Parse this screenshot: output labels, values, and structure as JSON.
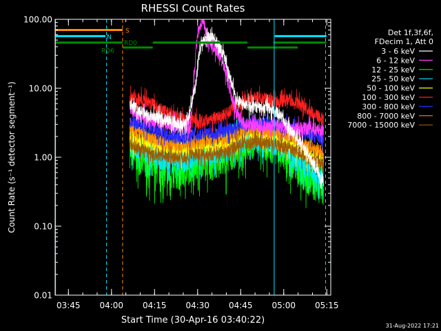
{
  "chart_data": {
    "type": "line",
    "title": "RHESSI Count Rates",
    "xlabel": "Start Time (30-Apr-16 03:40:22)",
    "ylabel": "Count Rate (s⁻¹ detector segment⁻¹)",
    "xlim_minutes": [
      0,
      96
    ],
    "ylim": [
      0.01,
      100
    ],
    "yscale": "log",
    "x_ticks": [
      {
        "label": "03:45",
        "t": 4.63
      },
      {
        "label": "04:00",
        "t": 19.63
      },
      {
        "label": "04:15",
        "t": 34.63
      },
      {
        "label": "04:30",
        "t": 49.63
      },
      {
        "label": "04:45",
        "t": 64.63
      },
      {
        "label": "05:00",
        "t": 79.63
      },
      {
        "label": "05:15",
        "t": 94.63
      }
    ],
    "y_ticks": [
      {
        "label": "100.00",
        "v": 100
      },
      {
        "label": "10.00",
        "v": 10
      },
      {
        "label": "1.00",
        "v": 1
      },
      {
        "label": "0.10",
        "v": 0.1
      },
      {
        "label": "0.01",
        "v": 0.01
      }
    ],
    "legend": {
      "header": [
        "Det 1f,3f,6f,",
        "FDecim 1, Att 0"
      ],
      "position": "right"
    },
    "series": [
      {
        "name": "3 - 6 keV",
        "color": "#ffffff",
        "t": [
          26,
          30,
          35,
          40,
          45,
          47,
          49,
          50,
          51,
          53,
          55,
          57,
          59,
          61,
          63,
          66,
          70,
          74,
          78,
          82,
          86,
          90,
          93.5
        ],
        "v": [
          6,
          4.5,
          3.8,
          3.4,
          3.0,
          4.5,
          12,
          28,
          46,
          55,
          52,
          42,
          28,
          14,
          7,
          5.6,
          5.2,
          5.3,
          4.3,
          2.4,
          1.5,
          0.8,
          0.45
        ]
      },
      {
        "name": "6 - 12 keV",
        "color": "#ff3cff",
        "t": [
          26,
          30,
          35,
          40,
          45,
          47,
          48,
          49,
          50,
          51,
          52,
          53,
          55,
          57,
          59,
          61,
          63,
          66,
          70,
          74,
          78,
          82,
          86,
          90,
          93.5
        ],
        "v": [
          5,
          3.8,
          3.3,
          3.0,
          2.8,
          2.8,
          8,
          35,
          70,
          92,
          80,
          55,
          42,
          30,
          20,
          9,
          4.5,
          3.0,
          2.9,
          2.9,
          2.8,
          2.7,
          2.6,
          2.6,
          2.4
        ]
      },
      {
        "name": "12 - 25 keV",
        "color": "#00ff00",
        "t": [
          26,
          30,
          35,
          40,
          45,
          50,
          55,
          60,
          63,
          66,
          70,
          74,
          78,
          82,
          86,
          90,
          93.5
        ],
        "v": [
          1.2,
          0.9,
          0.7,
          0.55,
          0.6,
          0.9,
          0.8,
          0.95,
          1.3,
          1.5,
          1.7,
          1.5,
          1.3,
          0.9,
          0.6,
          0.4,
          0.35
        ]
      },
      {
        "name": "25 - 50 keV",
        "color": "#00e8ff",
        "t": [
          26,
          30,
          35,
          40,
          45,
          50,
          55,
          60,
          63,
          66,
          70,
          74,
          78,
          82,
          86,
          90,
          93.5
        ],
        "v": [
          1.6,
          1.3,
          1.0,
          0.9,
          0.9,
          1.1,
          1.1,
          1.2,
          1.6,
          1.8,
          1.9,
          1.7,
          1.5,
          1.1,
          0.8,
          0.6,
          0.55
        ]
      },
      {
        "name": "50 - 100 keV",
        "color": "#ffff00",
        "t": [
          26,
          30,
          35,
          40,
          45,
          50,
          55,
          60,
          63,
          66,
          70,
          74,
          78,
          82,
          86,
          90,
          93.5
        ],
        "v": [
          2.0,
          1.6,
          1.4,
          1.3,
          1.3,
          1.5,
          1.5,
          1.6,
          2.0,
          2.2,
          2.3,
          2.1,
          1.9,
          1.5,
          1.2,
          1.0,
          0.95
        ]
      },
      {
        "name": "100 - 300 keV",
        "color": "#ff2020",
        "t": [
          26,
          30,
          35,
          40,
          45,
          50,
          55,
          60,
          63,
          66,
          70,
          74,
          78,
          82,
          86,
          90,
          93.5
        ],
        "v": [
          7.5,
          6.8,
          5.5,
          4.2,
          3.4,
          3.2,
          3.6,
          4.3,
          5.6,
          6.6,
          7.2,
          6.8,
          6.6,
          6.8,
          5.6,
          4.3,
          3.6
        ]
      },
      {
        "name": "300 - 800 keV",
        "color": "#2a2aff",
        "t": [
          26,
          30,
          35,
          40,
          45,
          50,
          55,
          60,
          63,
          66,
          70,
          74,
          78,
          82,
          86,
          90,
          93.5
        ],
        "v": [
          3.4,
          3.0,
          2.4,
          2.0,
          1.9,
          2.1,
          2.2,
          2.4,
          2.8,
          3.1,
          3.2,
          3.0,
          2.9,
          2.7,
          2.3,
          2.0,
          1.9
        ]
      },
      {
        "name": "800 - 7000 keV",
        "color": "#ff8c00",
        "t": [
          26,
          30,
          35,
          40,
          45,
          50,
          55,
          60,
          63,
          66,
          70,
          74,
          78,
          82,
          86,
          90,
          93.5
        ],
        "v": [
          2.6,
          2.2,
          1.8,
          1.5,
          1.5,
          1.7,
          1.8,
          1.9,
          2.2,
          2.5,
          2.6,
          2.4,
          2.3,
          2.0,
          1.6,
          1.3,
          1.2
        ]
      },
      {
        "name": "7000 - 15000 keV",
        "color": "#a05a00",
        "t": [
          26,
          30,
          35,
          40,
          45,
          50,
          55,
          60,
          63,
          66,
          70,
          74,
          78,
          82,
          86,
          90,
          93.5
        ],
        "v": [
          1.5,
          1.3,
          1.1,
          1.0,
          1.0,
          1.1,
          1.1,
          1.2,
          1.4,
          1.6,
          1.7,
          1.6,
          1.5,
          1.3,
          1.1,
          0.9,
          0.85
        ]
      }
    ],
    "flag_bars": [
      {
        "name": "S",
        "label": "S",
        "color": "#ff8c00",
        "level": 70,
        "segments": [
          [
            0,
            23.5
          ]
        ]
      },
      {
        "name": "N",
        "label": "N",
        "color": "#00e8ff",
        "level": 57,
        "segments": [
          [
            0,
            17.5
          ],
          [
            76.5,
            94.5
          ]
        ]
      },
      {
        "name": "RD6",
        "label": "RD6",
        "color": "#008a00",
        "level": 46,
        "segments": [
          [
            0,
            23.5
          ],
          [
            34,
            67
          ],
          [
            76,
            94.5
          ]
        ]
      },
      {
        "name": "RD0",
        "label": "RD0",
        "color": "#008a00",
        "level": 39,
        "segments": [
          [
            23.5,
            34
          ],
          [
            67,
            84.5
          ]
        ]
      }
    ],
    "vertical_lines": [
      {
        "t": 0.15,
        "color": "#00e8ff",
        "style": "solid"
      },
      {
        "t": 17.9,
        "color": "#00e8ff",
        "style": "dashed"
      },
      {
        "t": 23.5,
        "color": "#ff8c00",
        "style": "dashed"
      },
      {
        "t": 76.3,
        "color": "#00e8ff",
        "style": "solid"
      },
      {
        "t": 94.2,
        "color": "#00e8ff",
        "style": "dashed"
      }
    ]
  },
  "footer": {
    "timestamp": "31-Aug-2022 17:21"
  }
}
